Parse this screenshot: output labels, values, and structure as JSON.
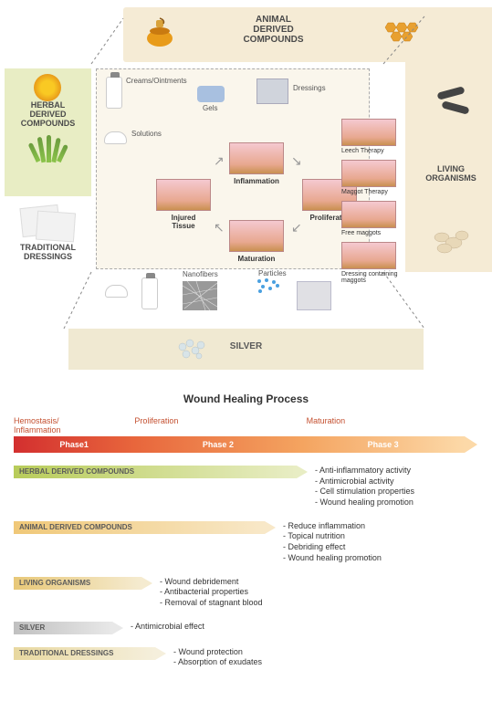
{
  "sections": {
    "animal": {
      "title": "ANIMAL\nDERIVED\nCOMPOUNDS"
    },
    "herbal": {
      "title": "HERBAL\nDERIVED\nCOMPOUNDS"
    },
    "living": {
      "title": "LIVING\nORGANISMS"
    },
    "traditional": {
      "title": "TRADITIONAL\nDRESSINGS"
    },
    "silver": {
      "title": "SILVER"
    }
  },
  "center_items": {
    "creams": "Creams/Ointments",
    "gels": "Gels",
    "dressings": "Dressings",
    "solutions": "Solutions",
    "nanofibers": "Nanofibers",
    "particles": "Particles"
  },
  "healing_cycle": {
    "injured": "Injured\nTissue",
    "inflammation": "Inflammation",
    "proliferation": "Proliferation",
    "maturation": "Maturation"
  },
  "therapies": {
    "leech": "Leech Therapy",
    "maggot": "Maggot Therapy",
    "free_maggots": "Free maggots",
    "dressing_maggots": "Dressing containing\nmaggots"
  },
  "process": {
    "title": "Wound Healing Process",
    "phase_tops": {
      "p1": "Hemostasis/\nInflammation",
      "p2": "Proliferation",
      "p3": "Maturation"
    },
    "phases": {
      "p1": "Phase1",
      "p2": "Phase 2",
      "p3": "Phase 3"
    },
    "phase_colors": {
      "p1_start": "#d32f2f",
      "p1_end": "#e8663c",
      "p2_end": "#f4a460",
      "p3_end": "#fcd9a8"
    }
  },
  "categories": [
    {
      "name": "HERBAL DERIVED COMPOUNDS",
      "arrow_class": "herbal-arrow",
      "colors": [
        "#b8cc5a",
        "#e8edc4"
      ],
      "bullets": [
        "- Anti-inflammatory activity",
        "- Antimicrobial activity",
        "- Cell stimulation properties",
        "- Wound healing promotion"
      ]
    },
    {
      "name": "ANIMAL DERIVED COMPOUNDS",
      "arrow_class": "animal-arrow",
      "colors": [
        "#f0c878",
        "#f8e8c8"
      ],
      "bullets": [
        "- Reduce inflammation",
        "- Topical nutrition",
        "- Debriding effect",
        "- Wound healing promotion"
      ]
    },
    {
      "name": "LIVING ORGANISMS",
      "arrow_class": "living-arrow",
      "colors": [
        "#e8c878",
        "#f5ebd0"
      ],
      "bullets": [
        "- Wound debridement",
        "- Antibacterial properties",
        "- Removal of stagnant blood"
      ]
    },
    {
      "name": "SILVER",
      "arrow_class": "silver-arrow",
      "colors": [
        "#c0c0c0",
        "#e8e8e8"
      ],
      "bullets": [
        "- Antimicrobial effect"
      ]
    },
    {
      "name": "TRADITIONAL DRESSINGS",
      "arrow_class": "trad-arrow",
      "colors": [
        "#e8d8a0",
        "#f5efdc"
      ],
      "bullets": [
        "- Wound protection",
        "- Absorption of exudates"
      ]
    }
  ],
  "styling": {
    "background": "#ffffff",
    "herbal_bg": "#e8edc4",
    "animal_bg": "#f5ebd5",
    "center_bg": "#faf6ec",
    "silver_bg": "#f0e9d2",
    "font_family": "Arial, sans-serif",
    "title_fontsize": 10,
    "label_fontsize": 8,
    "bullet_fontsize": 9,
    "tissue_gradient": [
      "#f5c9d0",
      "#e8a890",
      "#c99050"
    ]
  }
}
